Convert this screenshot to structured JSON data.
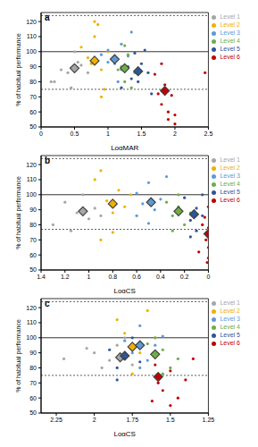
{
  "chart_data": [
    {
      "type": "scatter",
      "title": "a",
      "x_label": "LogMAR",
      "y_label": "% of habitual performance",
      "xlim": [
        0,
        2.5
      ],
      "xticks": [
        0,
        0.5,
        1,
        1.5,
        2,
        2.5
      ],
      "ylim": [
        50,
        126
      ],
      "yticks": [
        50,
        60,
        70,
        80,
        90,
        100,
        110,
        120
      ],
      "legend": "right",
      "hlines": [
        {
          "value": 100,
          "line_style": "solid"
        },
        {
          "value": 75,
          "line_style": "dashed"
        },
        {
          "value": 124,
          "line_style": "dashed"
        }
      ],
      "series": [
        {
          "name": "Level 1",
          "color": "#a6a6a6",
          "x": [
            0.2,
            0.3,
            0.4,
            0.5,
            0.6,
            0.45,
            0.7,
            0.55,
            0.15
          ],
          "values": [
            80,
            88,
            86,
            100,
            91,
            76,
            86,
            93,
            80
          ],
          "mean": {
            "x": 0.5,
            "value": 89
          }
        },
        {
          "name": "Level 2",
          "color": "#f0b000",
          "x": [
            0.6,
            0.7,
            0.8,
            0.85,
            0.9,
            0.75,
            0.95,
            1.0,
            0.9,
            0.8
          ],
          "values": [
            103,
            96,
            110,
            118,
            88,
            92,
            75,
            100,
            70,
            120
          ],
          "mean": {
            "x": 0.8,
            "value": 94
          }
        },
        {
          "name": "Level 3",
          "color": "#5b9bd5",
          "x": [
            0.9,
            1.0,
            1.1,
            1.2,
            1.2,
            1.3,
            1.15,
            1.0,
            1.35
          ],
          "values": [
            98,
            101,
            92,
            105,
            88,
            97,
            80,
            93,
            113
          ],
          "mean": {
            "x": 1.1,
            "value": 95
          }
        },
        {
          "name": "Level 4",
          "color": "#70ad47",
          "x": [
            1.1,
            1.2,
            1.25,
            1.3,
            1.4,
            1.25,
            1.35,
            1.15
          ],
          "values": [
            96,
            90,
            80,
            98,
            86,
            104,
            76,
            88
          ],
          "mean": {
            "x": 1.25,
            "value": 89
          }
        },
        {
          "name": "Level 5",
          "color": "#2f5597",
          "x": [
            1.2,
            1.3,
            1.4,
            1.5,
            1.45,
            1.6,
            1.55,
            1.35,
            1.65
          ],
          "values": [
            76,
            90,
            99,
            92,
            80,
            86,
            101,
            82,
            72
          ],
          "mean": {
            "x": 1.45,
            "value": 87
          }
        },
        {
          "name": "Level 6",
          "color": "#c00000",
          "x": [
            1.7,
            1.75,
            1.8,
            1.85,
            1.9,
            1.95,
            2.0,
            1.9,
            1.8,
            2.45,
            2.0
          ],
          "values": [
            85,
            72,
            65,
            78,
            60,
            71,
            58,
            55,
            92,
            86,
            52
          ],
          "mean": {
            "x": 1.85,
            "value": 74
          }
        }
      ]
    },
    {
      "type": "scatter",
      "title": "b",
      "x_label": "LogCS",
      "y_label": "% of habitual performance",
      "xlim": [
        1.4,
        0
      ],
      "xticks": [
        1.4,
        1.2,
        1,
        0.8,
        0.6,
        0.4,
        0.2,
        0
      ],
      "ylim": [
        50,
        126
      ],
      "yticks": [
        50,
        60,
        70,
        80,
        90,
        100,
        110,
        120
      ],
      "legend": "right",
      "hlines": [
        {
          "value": 100,
          "line_style": "solid"
        },
        {
          "value": 77,
          "line_style": "dashed"
        },
        {
          "value": 124,
          "line_style": "dashed"
        }
      ],
      "series": [
        {
          "name": "Level 1",
          "color": "#a6a6a6",
          "x": [
            1.3,
            1.2,
            1.1,
            1.05,
            1.0,
            0.95,
            1.15,
            0.9
          ],
          "values": [
            80,
            95,
            88,
            100,
            84,
            91,
            76,
            86
          ],
          "mean": {
            "x": 1.05,
            "value": 89
          }
        },
        {
          "name": "Level 2",
          "color": "#f0b000",
          "x": [
            0.95,
            0.9,
            0.85,
            0.8,
            0.75,
            0.7,
            0.8,
            0.65,
            0.9
          ],
          "values": [
            110,
            116,
            96,
            88,
            103,
            92,
            75,
            100,
            70
          ],
          "mean": {
            "x": 0.8,
            "value": 94
          }
        },
        {
          "name": "Level 3",
          "color": "#5b9bd5",
          "x": [
            0.6,
            0.55,
            0.5,
            0.45,
            0.5,
            0.4,
            0.6,
            0.35
          ],
          "values": [
            101,
            94,
            108,
            90,
            81,
            97,
            86,
            112
          ],
          "mean": {
            "x": 0.48,
            "value": 95
          }
        },
        {
          "name": "Level 4",
          "color": "#70ad47",
          "x": [
            0.35,
            0.3,
            0.25,
            0.2,
            0.25,
            0.15,
            0.3
          ],
          "values": [
            95,
            86,
            100,
            80,
            92,
            88,
            76
          ],
          "mean": {
            "x": 0.25,
            "value": 89
          }
        },
        {
          "name": "Level 5",
          "color": "#2f5597",
          "x": [
            0.2,
            0.15,
            0.1,
            0.05,
            0.1,
            0.05,
            0.15
          ],
          "values": [
            98,
            83,
            91,
            86,
            76,
            100,
            72
          ],
          "mean": {
            "x": 0.12,
            "value": 87
          }
        },
        {
          "name": "Level 6",
          "color": "#c00000",
          "x": [
            0.05,
            0.02,
            0,
            0,
            0,
            0.03,
            0,
            0.01,
            0,
            0.08
          ],
          "values": [
            80,
            70,
            65,
            78,
            58,
            85,
            92,
            55,
            72,
            62
          ],
          "mean": {
            "x": 0,
            "value": 74
          }
        }
      ]
    },
    {
      "type": "scatter",
      "title": "c",
      "x_label": "LogCS",
      "y_label": "% of habitual performance",
      "xlim": [
        2.35,
        1.25
      ],
      "xticks": [
        2.25,
        2,
        1.75,
        1.5,
        1.25
      ],
      "ylim": [
        50,
        126
      ],
      "yticks": [
        50,
        60,
        70,
        80,
        90,
        100,
        110,
        120
      ],
      "legend": "right",
      "hlines": [
        {
          "value": 100,
          "line_style": "solid"
        },
        {
          "value": 75,
          "line_style": "dashed"
        },
        {
          "value": 124,
          "line_style": "dashed"
        }
      ],
      "series": [
        {
          "name": "Level 1",
          "color": "#a6a6a6",
          "x": [
            2.2,
            2.0,
            1.95,
            1.85,
            1.9,
            1.8,
            2.05,
            1.75
          ],
          "values": [
            86,
            90,
            80,
            95,
            85,
            100,
            93,
            82
          ],
          "mean": {
            "x": 1.83,
            "value": 87
          }
        },
        {
          "name": "Level 2",
          "color": "#f0b000",
          "x": [
            1.85,
            1.8,
            1.75,
            1.7,
            1.65,
            1.75,
            1.6,
            1.8
          ],
          "values": [
            112,
            103,
            96,
            90,
            118,
            76,
            100,
            88
          ],
          "mean": {
            "x": 1.75,
            "value": 94
          }
        },
        {
          "name": "Level 3",
          "color": "#5b9bd5",
          "x": [
            1.8,
            1.75,
            1.7,
            1.65,
            1.6,
            1.7,
            1.55
          ],
          "values": [
            98,
            90,
            108,
            85,
            95,
            80,
            101
          ],
          "mean": {
            "x": 1.7,
            "value": 95
          }
        },
        {
          "name": "Level 4",
          "color": "#70ad47",
          "x": [
            1.65,
            1.6,
            1.55,
            1.5,
            1.6,
            1.45,
            1.55
          ],
          "values": [
            96,
            88,
            92,
            80,
            100,
            86,
            76
          ],
          "mean": {
            "x": 1.6,
            "value": 89
          }
        },
        {
          "name": "Level 5",
          "color": "#2f5597",
          "x": [
            1.9,
            1.85,
            1.8,
            1.75,
            1.7,
            1.85
          ],
          "values": [
            92,
            80,
            86,
            100,
            84,
            72
          ],
          "mean": {
            "x": 1.8,
            "value": 88
          }
        },
        {
          "name": "Level 6",
          "color": "#c00000",
          "x": [
            1.6,
            1.58,
            1.55,
            1.5,
            1.45,
            1.4,
            1.35,
            1.5,
            1.62
          ],
          "values": [
            82,
            70,
            65,
            78,
            60,
            72,
            86,
            55,
            58
          ],
          "mean": {
            "x": 1.58,
            "value": 74
          }
        }
      ]
    }
  ]
}
